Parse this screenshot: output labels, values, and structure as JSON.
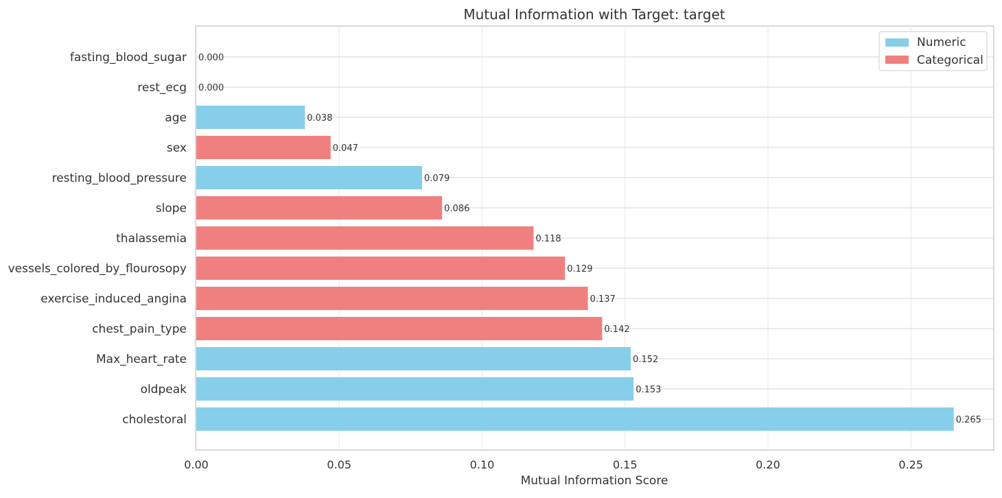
{
  "chart_data": {
    "type": "bar",
    "orientation": "horizontal",
    "title": "Mutual Information with Target: target",
    "xlabel": "Mutual Information Score",
    "ylabel": "",
    "xlim": [
      0,
      0.279
    ],
    "xticks": [
      0.0,
      0.05,
      0.1,
      0.15,
      0.2,
      0.25
    ],
    "xtick_labels": [
      "0.00",
      "0.05",
      "0.10",
      "0.15",
      "0.20",
      "0.25"
    ],
    "grid": true,
    "legend_placement": "top-right",
    "categories": [
      "fasting_blood_sugar",
      "rest_ecg",
      "age",
      "sex",
      "resting_blood_pressure",
      "slope",
      "thalassemia",
      "vessels_colored_by_flourosopy",
      "exercise_induced_angina",
      "chest_pain_type",
      "Max_heart_rate",
      "oldpeak",
      "cholestoral"
    ],
    "values": [
      0.0,
      0.0,
      0.038,
      0.047,
      0.079,
      0.086,
      0.118,
      0.129,
      0.137,
      0.142,
      0.152,
      0.153,
      0.265
    ],
    "value_labels": [
      "0.000",
      "0.000",
      "0.038",
      "0.047",
      "0.079",
      "0.086",
      "0.118",
      "0.129",
      "0.137",
      "0.142",
      "0.152",
      "0.153",
      "0.265"
    ],
    "feature_types": [
      "Categorical",
      "Categorical",
      "Numeric",
      "Categorical",
      "Numeric",
      "Categorical",
      "Categorical",
      "Categorical",
      "Categorical",
      "Categorical",
      "Numeric",
      "Numeric",
      "Numeric"
    ],
    "legend": [
      {
        "name": "Numeric",
        "color": "#87ceeb"
      },
      {
        "name": "Categorical",
        "color": "#f08080"
      }
    ],
    "colors": {
      "Numeric": "#87ceeb",
      "Categorical": "#f08080"
    }
  }
}
